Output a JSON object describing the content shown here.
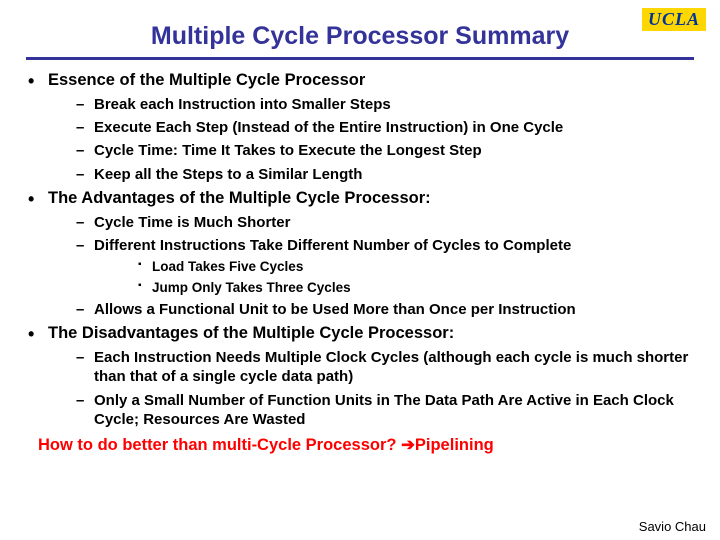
{
  "logo": "UCLA",
  "title": "Multiple Cycle Processor Summary",
  "colors": {
    "title": "#333399",
    "rule": "#333399",
    "logo_bg": "#ffd700",
    "logo_fg": "#003399",
    "highlight": "#ff0000",
    "text": "#000000",
    "background": "#ffffff"
  },
  "bullets": {
    "essence": {
      "label": "Essence of the Multiple Cycle Processor",
      "items": [
        "Break each Instruction into Smaller Steps",
        "Execute Each Step (Instead of the Entire Instruction) in One Cycle",
        "Cycle Time: Time It Takes to Execute the Longest Step",
        "Keep all the Steps to a Similar Length"
      ]
    },
    "advantages": {
      "label": "The Advantages of the Multiple Cycle Processor:",
      "items": {
        "a0": "Cycle Time is Much Shorter",
        "a1": "Different Instructions Take Different Number of Cycles to Complete",
        "a1_sub": [
          "Load Takes Five Cycles",
          "Jump Only Takes Three Cycles"
        ],
        "a2": "Allows a Functional Unit to be Used More than Once per Instruction"
      }
    },
    "disadvantages": {
      "label": "The Disadvantages of the Multiple Cycle Processor:",
      "items": [
        "Each Instruction Needs Multiple Clock Cycles (although each cycle is much shorter than that of a single cycle data path)",
        "Only a Small Number of Function Units in The Data Path Are Active in Each Clock Cycle; Resources Are Wasted"
      ]
    }
  },
  "highlight": {
    "question": "How to do better than multi-Cycle Processor? ",
    "arrow": "➔",
    "answer": "Pipelining"
  },
  "author": "Savio Chau"
}
